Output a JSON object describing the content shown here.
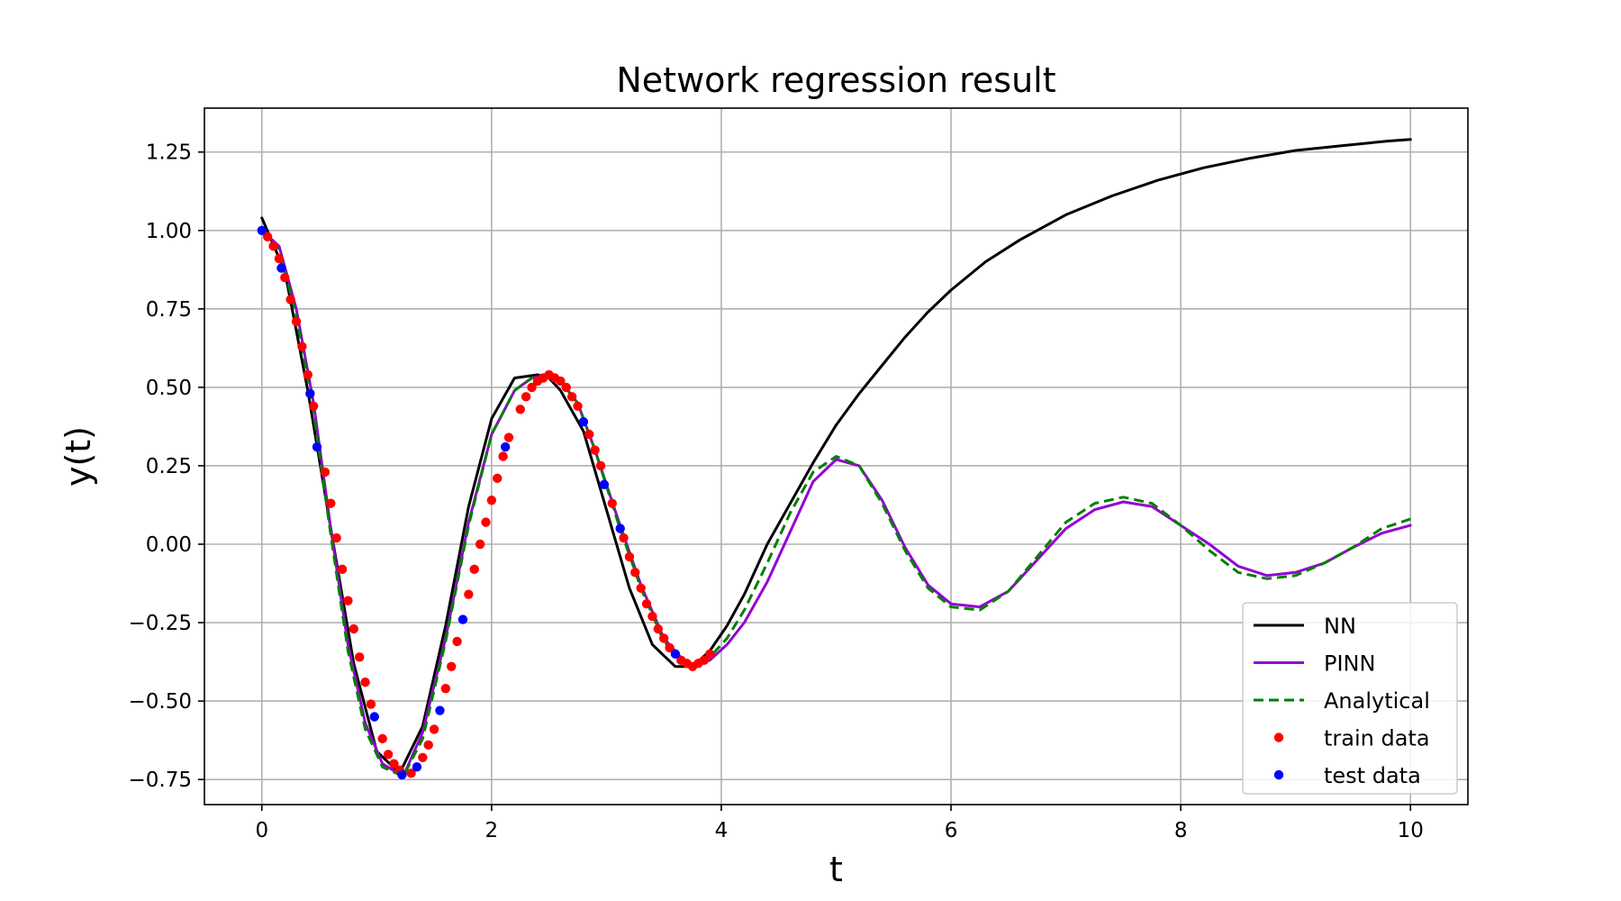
{
  "chart_data": {
    "type": "line",
    "title": "Network regression result",
    "xlabel": "t",
    "ylabel": "y(t)",
    "xlim": [
      -0.5,
      10.5
    ],
    "ylim": [
      -0.83,
      1.39
    ],
    "grid": true,
    "legend_position": "lower right",
    "xticks": [
      {
        "value": 0,
        "label": "0"
      },
      {
        "value": 2,
        "label": "2"
      },
      {
        "value": 4,
        "label": "4"
      },
      {
        "value": 6,
        "label": "6"
      },
      {
        "value": 8,
        "label": "8"
      },
      {
        "value": 10,
        "label": "10"
      }
    ],
    "yticks": [
      {
        "value": 1.25,
        "label": "1.25"
      },
      {
        "value": 1.0,
        "label": "1.00"
      },
      {
        "value": 0.75,
        "label": "0.75"
      },
      {
        "value": 0.5,
        "label": "0.50"
      },
      {
        "value": 0.25,
        "label": "0.25"
      },
      {
        "value": 0.0,
        "label": "0.00"
      },
      {
        "value": -0.25,
        "label": "−0.25"
      },
      {
        "value": -0.5,
        "label": "−0.50"
      },
      {
        "value": -0.75,
        "label": "−0.75"
      }
    ],
    "series": [
      {
        "name": "NN",
        "style": "line",
        "color": "#000000",
        "x": [
          0,
          0.2,
          0.4,
          0.6,
          0.8,
          1.0,
          1.2,
          1.4,
          1.6,
          1.8,
          2.0,
          2.2,
          2.4,
          2.5,
          2.6,
          2.8,
          3.0,
          3.2,
          3.4,
          3.6,
          3.75,
          3.9,
          4.05,
          4.2,
          4.4,
          4.6,
          4.8,
          5.0,
          5.2,
          5.4,
          5.6,
          5.8,
          6.0,
          6.3,
          6.6,
          7.0,
          7.4,
          7.8,
          8.2,
          8.6,
          9.0,
          9.4,
          9.8,
          10.0
        ],
        "y": [
          1.04,
          0.87,
          0.49,
          0.05,
          -0.38,
          -0.66,
          -0.73,
          -0.58,
          -0.26,
          0.12,
          0.4,
          0.53,
          0.54,
          0.53,
          0.49,
          0.36,
          0.11,
          -0.14,
          -0.32,
          -0.39,
          -0.39,
          -0.34,
          -0.26,
          -0.16,
          0.0,
          0.13,
          0.26,
          0.38,
          0.48,
          0.57,
          0.66,
          0.74,
          0.81,
          0.9,
          0.97,
          1.05,
          1.11,
          1.16,
          1.2,
          1.23,
          1.255,
          1.27,
          1.285,
          1.29
        ]
      },
      {
        "name": "PINN",
        "style": "line",
        "color": "#9400d3",
        "x": [
          0,
          0.15,
          0.3,
          0.45,
          0.6,
          0.75,
          0.9,
          1.05,
          1.23,
          1.4,
          1.6,
          1.8,
          2.0,
          2.2,
          2.35,
          2.48,
          2.6,
          2.75,
          2.9,
          3.1,
          3.3,
          3.5,
          3.72,
          3.9,
          4.05,
          4.2,
          4.4,
          4.6,
          4.8,
          5.0,
          5.2,
          5.4,
          5.6,
          5.8,
          6.0,
          6.25,
          6.5,
          6.75,
          7.0,
          7.25,
          7.5,
          7.75,
          8.0,
          8.25,
          8.5,
          8.75,
          9.0,
          9.25,
          9.5,
          9.75,
          10.0
        ],
        "y": [
          1.0,
          0.95,
          0.75,
          0.45,
          0.05,
          -0.32,
          -0.57,
          -0.7,
          -0.74,
          -0.6,
          -0.3,
          0.07,
          0.35,
          0.49,
          0.53,
          0.54,
          0.52,
          0.45,
          0.3,
          0.08,
          -0.13,
          -0.3,
          -0.39,
          -0.37,
          -0.32,
          -0.25,
          -0.12,
          0.04,
          0.2,
          0.27,
          0.25,
          0.14,
          -0.01,
          -0.13,
          -0.19,
          -0.2,
          -0.15,
          -0.05,
          0.05,
          0.11,
          0.135,
          0.12,
          0.06,
          0.0,
          -0.07,
          -0.1,
          -0.09,
          -0.06,
          -0.01,
          0.035,
          0.06
        ]
      },
      {
        "name": "Analytical",
        "style": "dashed",
        "color": "#008000",
        "x": [
          0,
          0.15,
          0.3,
          0.45,
          0.6,
          0.75,
          0.9,
          1.05,
          1.23,
          1.4,
          1.6,
          1.8,
          2.0,
          2.2,
          2.35,
          2.48,
          2.6,
          2.75,
          2.9,
          3.1,
          3.3,
          3.5,
          3.72,
          3.9,
          4.05,
          4.2,
          4.4,
          4.6,
          4.8,
          5.0,
          5.2,
          5.4,
          5.6,
          5.8,
          6.0,
          6.25,
          6.5,
          6.75,
          7.0,
          7.25,
          7.5,
          7.75,
          8.0,
          8.25,
          8.5,
          8.75,
          9.0,
          9.25,
          9.5,
          9.75,
          10.0
        ],
        "y": [
          1.0,
          0.94,
          0.73,
          0.42,
          0.03,
          -0.34,
          -0.59,
          -0.71,
          -0.74,
          -0.62,
          -0.31,
          0.06,
          0.35,
          0.49,
          0.53,
          0.54,
          0.52,
          0.45,
          0.3,
          0.07,
          -0.14,
          -0.31,
          -0.39,
          -0.36,
          -0.3,
          -0.21,
          -0.06,
          0.1,
          0.23,
          0.28,
          0.25,
          0.13,
          -0.02,
          -0.14,
          -0.2,
          -0.21,
          -0.15,
          -0.04,
          0.07,
          0.13,
          0.15,
          0.13,
          0.06,
          -0.02,
          -0.09,
          -0.11,
          -0.1,
          -0.06,
          -0.01,
          0.05,
          0.08
        ]
      },
      {
        "name": "train data",
        "style": "markers",
        "color": "#ff0000",
        "x": [
          0.05,
          0.1,
          0.15,
          0.2,
          0.25,
          0.3,
          0.35,
          0.4,
          0.45,
          0.55,
          0.6,
          0.65,
          0.7,
          0.75,
          0.8,
          0.85,
          0.9,
          0.95,
          1.05,
          1.1,
          1.15,
          1.2,
          1.3,
          1.4,
          1.45,
          1.5,
          1.6,
          1.65,
          1.7,
          1.8,
          1.85,
          1.9,
          1.95,
          2.0,
          2.05,
          2.1,
          2.15,
          2.25,
          2.3,
          2.35,
          2.4,
          2.45,
          2.5,
          2.55,
          2.6,
          2.65,
          2.7,
          2.75,
          2.85,
          2.9,
          2.95,
          3.05,
          3.15,
          3.2,
          3.25,
          3.3,
          3.35,
          3.4,
          3.45,
          3.5,
          3.55,
          3.65,
          3.7,
          3.75,
          3.8,
          3.85,
          3.9
        ],
        "y": [
          0.98,
          0.95,
          0.91,
          0.85,
          0.78,
          0.71,
          0.63,
          0.54,
          0.44,
          0.23,
          0.13,
          0.02,
          -0.08,
          -0.18,
          -0.27,
          -0.36,
          -0.44,
          -0.51,
          -0.62,
          -0.67,
          -0.7,
          -0.72,
          -0.73,
          -0.68,
          -0.64,
          -0.59,
          -0.46,
          -0.39,
          -0.31,
          -0.16,
          -0.08,
          0.0,
          0.07,
          0.14,
          0.21,
          0.28,
          0.34,
          0.43,
          0.47,
          0.5,
          0.52,
          0.53,
          0.54,
          0.53,
          0.52,
          0.5,
          0.47,
          0.44,
          0.35,
          0.3,
          0.25,
          0.13,
          0.02,
          -0.04,
          -0.09,
          -0.14,
          -0.19,
          -0.23,
          -0.27,
          -0.3,
          -0.33,
          -0.37,
          -0.38,
          -0.39,
          -0.38,
          -0.37,
          -0.35
        ]
      },
      {
        "name": "test data",
        "style": "markers",
        "color": "#0000ff",
        "x": [
          0.0,
          0.17,
          0.42,
          0.48,
          0.98,
          1.22,
          1.35,
          1.55,
          1.75,
          2.12,
          2.8,
          2.98,
          3.12,
          3.6
        ],
        "y": [
          1.0,
          0.88,
          0.48,
          0.31,
          -0.55,
          -0.735,
          -0.71,
          -0.53,
          -0.24,
          0.31,
          0.39,
          0.19,
          0.05,
          -0.35
        ]
      }
    ]
  }
}
